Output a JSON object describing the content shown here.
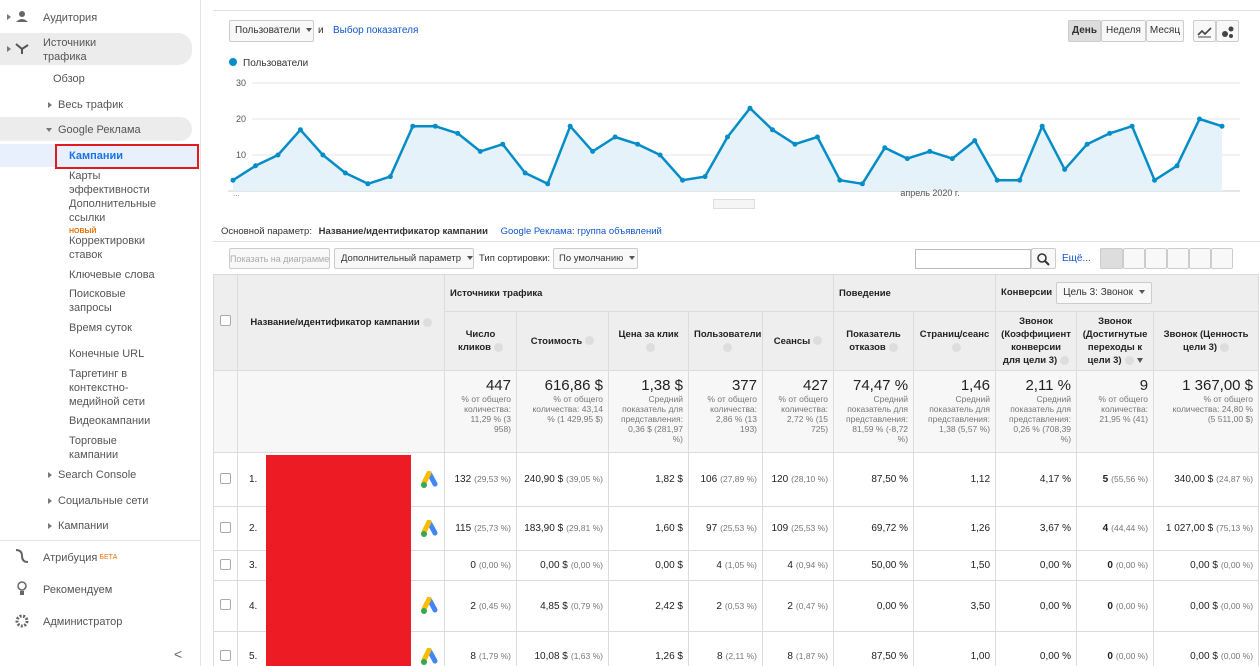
{
  "sidebar": {
    "items": [
      {
        "label": "Аудитория"
      },
      {
        "label": "Источники трафика"
      },
      {
        "label": "Обзор"
      },
      {
        "label": "Весь трафик"
      },
      {
        "label": "Google Реклама"
      },
      {
        "label": "Кампании"
      },
      {
        "label": "Карты эффективности"
      },
      {
        "label": "Дополнительные ссылки",
        "badge": "НОВЫЙ"
      },
      {
        "label": "Корректировки ставок"
      },
      {
        "label": "Ключевые слова"
      },
      {
        "label": "Поисковые запросы"
      },
      {
        "label": "Время суток"
      },
      {
        "label": "Конечные URL"
      },
      {
        "label": "Таргетинг в контекстно-медийной сети"
      },
      {
        "label": "Видеокампании"
      },
      {
        "label": "Торговые кампании"
      },
      {
        "label": "Search Console"
      },
      {
        "label": "Социальные сети"
      },
      {
        "label": "Кампании"
      },
      {
        "label": "Атрибуция",
        "badge": "БЕТА"
      },
      {
        "label": "Рекомендуем"
      },
      {
        "label": "Администратор"
      }
    ],
    "collapse": "<"
  },
  "toolbar": {
    "metric": "Пользователи",
    "and": "и",
    "metric_link": "Выбор показателя",
    "periods": [
      "День",
      "Неделя",
      "Месяц"
    ],
    "active_period": "День"
  },
  "chart_data": {
    "type": "line",
    "series": [
      {
        "name": "Пользователи",
        "color": "#058dc7",
        "values": [
          3,
          7,
          10,
          17,
          10,
          5,
          2,
          4,
          18,
          18,
          16,
          11,
          13,
          5,
          2,
          18,
          11,
          15,
          13,
          10,
          3,
          4,
          15,
          23,
          17,
          13,
          15,
          3,
          2,
          12,
          9,
          11,
          9,
          14,
          3,
          3,
          18,
          6,
          13,
          16,
          18,
          3,
          7,
          20,
          18
        ]
      }
    ],
    "ylim": [
      0,
      30
    ],
    "yticks": [
      10,
      20,
      30
    ],
    "x_labels": [
      "...",
      "апрель 2020 г."
    ],
    "grid": true
  },
  "dimension": {
    "label": "Основной параметр:",
    "active": "Название/идентификатор кампании",
    "alt": "Google Реклама: группа объявлений"
  },
  "table_toolbar": {
    "plot": "Показать на диаграмме",
    "secondary": "Дополнительный параметр",
    "sort_label": "Тип сортировки:",
    "sort": "По умолчанию",
    "more": "Ещё..."
  },
  "table": {
    "groups": [
      "Источники трафика",
      "Поведение",
      "Конверсии"
    ],
    "goal": "Цель 3: Звонок",
    "columns": [
      "Название/идентификатор кампании",
      "Число кликов",
      "Стоимость",
      "Цена за клик",
      "Пользователи",
      "Сеансы",
      "Показатель отказов",
      "Страниц/сеанс",
      "Звонок (Коэффициент конверсии для цели 3)",
      "Звонок (Достигнутые переходы к цели 3)",
      "Звонок (Ценность цели 3)"
    ],
    "totals": [
      [
        "447",
        "% от общего количества: 11,29 % (3 958)"
      ],
      [
        "616,86 $",
        "% от общего количества: 43,14 % (1 429,95 $)"
      ],
      [
        "1,38 $",
        "Средний показатель для представления: 0,36 $ (281,97 %)"
      ],
      [
        "377",
        "% от общего количества: 2,86 % (13 193)"
      ],
      [
        "427",
        "% от общего количества: 2,72 % (15 725)"
      ],
      [
        "74,47 %",
        "Средний показатель для представления: 81,59 % (-8,72 %)"
      ],
      [
        "1,46",
        "Средний показатель для представления: 1,38 (5,57 %)"
      ],
      [
        "2,11 %",
        "Средний показатель для представления: 0,26 % (708,39 %)"
      ],
      [
        "9",
        "% от общего количества: 21,95 % (41)"
      ],
      [
        "1 367,00 $",
        "% от общего количества: 24,80 % (5 511,00 $)"
      ]
    ],
    "rows": [
      {
        "index": "1.",
        "ad_icon": true,
        "cells": [
          [
            "132",
            "(29,53 %)"
          ],
          [
            "240,90 $",
            "(39,05 %)"
          ],
          "1,82 $",
          [
            "106",
            "(27,89 %)"
          ],
          [
            "120",
            "(28,10 %)"
          ],
          "87,50 %",
          "1,12",
          "4,17 %",
          [
            "5",
            "(55,56 %)"
          ],
          [
            "340,00 $",
            "(24,87 %)"
          ]
        ]
      },
      {
        "index": "2.",
        "ad_icon": true,
        "cells": [
          [
            "115",
            "(25,73 %)"
          ],
          [
            "183,90 $",
            "(29,81 %)"
          ],
          "1,60 $",
          [
            "97",
            "(25,53 %)"
          ],
          [
            "109",
            "(25,53 %)"
          ],
          "69,72 %",
          "1,26",
          "3,67 %",
          [
            "4",
            "(44,44 %)"
          ],
          [
            "1 027,00 $",
            "(75,13 %)"
          ]
        ]
      },
      {
        "index": "3.",
        "ad_icon": false,
        "cells": [
          [
            "0",
            "(0,00 %)"
          ],
          [
            "0,00 $",
            "(0,00 %)"
          ],
          "0,00 $",
          [
            "4",
            "(1,05 %)"
          ],
          [
            "4",
            "(0,94 %)"
          ],
          "50,00 %",
          "1,50",
          "0,00 %",
          [
            "0",
            "(0,00 %)"
          ],
          [
            "0,00 $",
            "(0,00 %)"
          ]
        ]
      },
      {
        "index": "4.",
        "ad_icon": true,
        "cells": [
          [
            "2",
            "(0,45 %)"
          ],
          [
            "4,85 $",
            "(0,79 %)"
          ],
          "2,42 $",
          [
            "2",
            "(0,53 %)"
          ],
          [
            "2",
            "(0,47 %)"
          ],
          "0,00 %",
          "3,50",
          "0,00 %",
          [
            "0",
            "(0,00 %)"
          ],
          [
            "0,00 $",
            "(0,00 %)"
          ]
        ]
      },
      {
        "index": "5.",
        "ad_icon": true,
        "cells": [
          [
            "8",
            "(1,79 %)"
          ],
          [
            "10,08 $",
            "(1,63 %)"
          ],
          "1,26 $",
          [
            "8",
            "(2,11 %)"
          ],
          [
            "8",
            "(1,87 %)"
          ],
          "87,50 %",
          "1,00",
          "0,00 %",
          [
            "0",
            "(0,00 %)"
          ],
          [
            "0,00 $",
            "(0,00 %)"
          ]
        ]
      }
    ]
  }
}
